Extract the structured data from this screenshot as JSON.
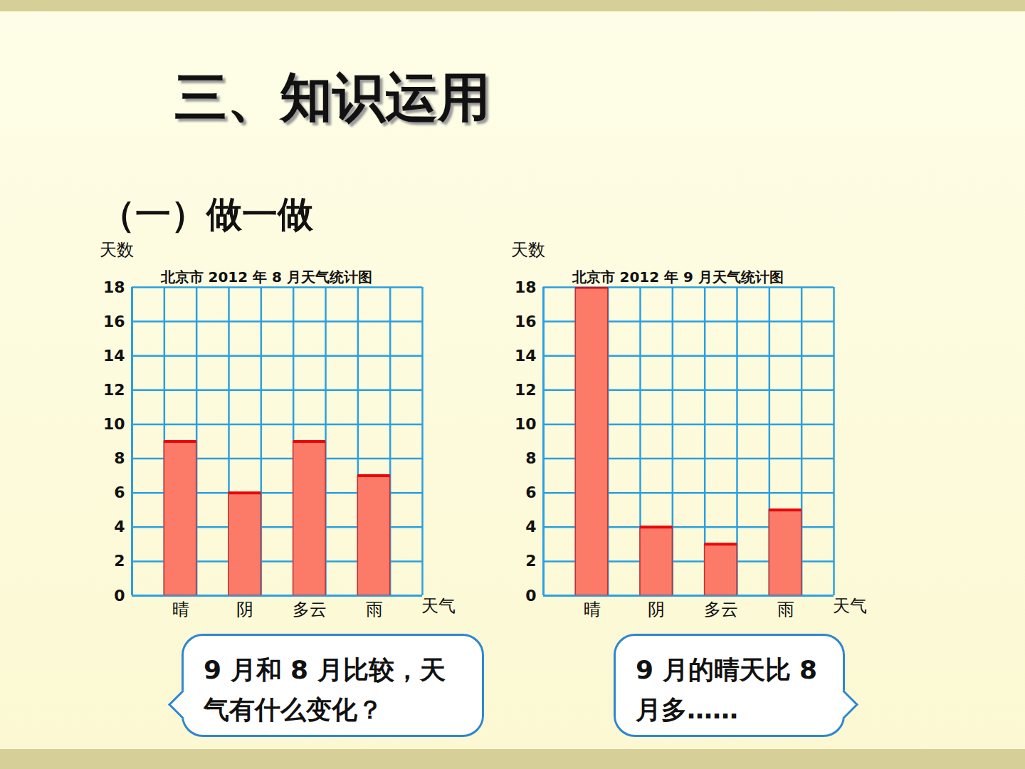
{
  "heading": "三、知识运用",
  "section": "（一）做一做",
  "speech": [
    "9 月和 8 月比较，天气有什么变化？",
    "9 月的晴天比 8 月多……"
  ],
  "chart_data": [
    {
      "type": "bar",
      "title": "北京市 2012 年 8 月天气统计图",
      "categories": [
        "晴",
        "阴",
        "多云",
        "雨"
      ],
      "values": [
        9,
        6,
        9,
        7
      ],
      "color": "#fb7b68",
      "x_label": "天气",
      "y_label": "天数",
      "ylim": [
        0,
        18
      ],
      "yticks": [
        0,
        2,
        4,
        6,
        8,
        10,
        12,
        14,
        16,
        18
      ],
      "grid": true
    },
    {
      "type": "bar",
      "title": "北京市 2012 年 9 月天气统计图",
      "categories": [
        "晴",
        "阴",
        "多云",
        "雨"
      ],
      "values": [
        18,
        4,
        3,
        5
      ],
      "color": "#fb7b68",
      "x_label": "天气",
      "y_label": "天数",
      "ylim": [
        0,
        18
      ],
      "yticks": [
        0,
        2,
        4,
        6,
        8,
        10,
        12,
        14,
        16,
        18
      ],
      "grid": true
    }
  ]
}
